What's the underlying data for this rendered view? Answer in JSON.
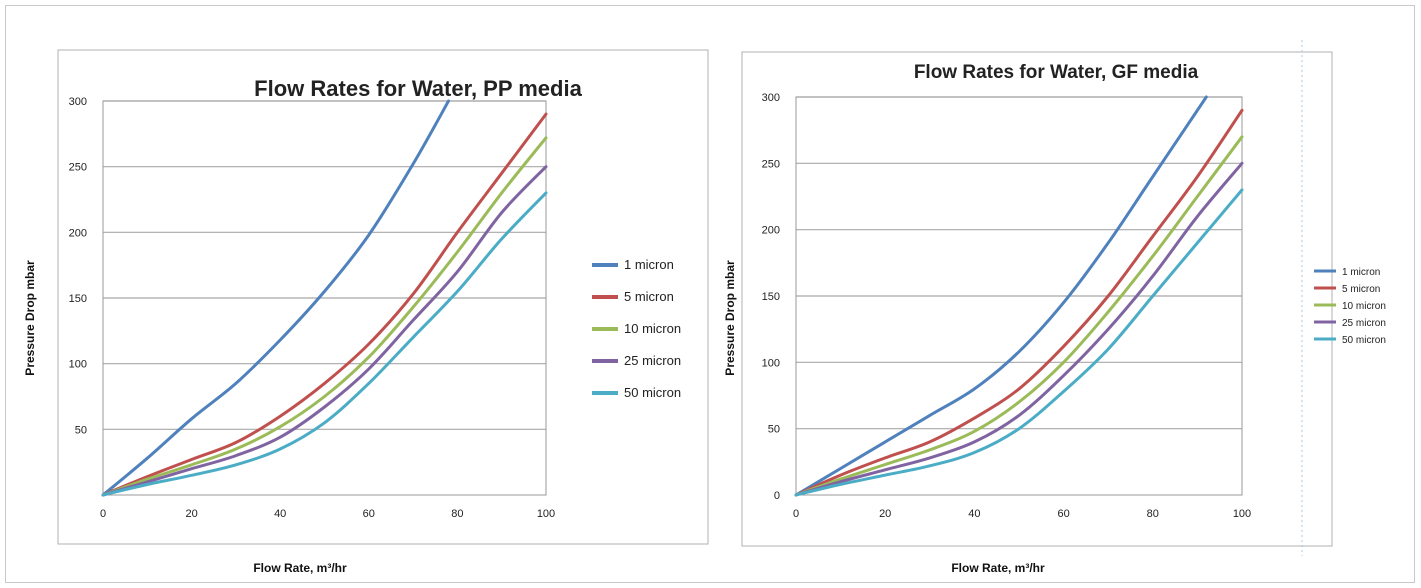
{
  "chart_data": [
    {
      "type": "line",
      "title": "Flow Rates for Water, PP media",
      "xlabel": "Flow Rate, m³/hr",
      "ylabel": "Pressure Drop mbar",
      "xlim": [
        0,
        100
      ],
      "ylim": [
        0,
        300
      ],
      "x_ticks": [
        "0",
        "20",
        "40",
        "60",
        "80",
        "100"
      ],
      "y_ticks": [
        "50",
        "100",
        "150",
        "200",
        "250",
        "300"
      ],
      "grid": true,
      "legend_position": "right",
      "series": [
        {
          "name": "1 micron",
          "color": "#4f81bd",
          "x": [
            0,
            10,
            20,
            30,
            40,
            50,
            60,
            70,
            78
          ],
          "y": [
            0,
            28,
            58,
            85,
            118,
            155,
            198,
            252,
            300
          ]
        },
        {
          "name": "5 micron",
          "color": "#c0504d",
          "x": [
            0,
            10,
            20,
            30,
            40,
            50,
            60,
            70,
            80,
            90,
            100
          ],
          "y": [
            0,
            14,
            27,
            40,
            60,
            85,
            115,
            153,
            200,
            245,
            290
          ]
        },
        {
          "name": "10 micron",
          "color": "#9bbb59",
          "x": [
            0,
            10,
            20,
            30,
            40,
            50,
            60,
            70,
            80,
            90,
            100
          ],
          "y": [
            0,
            12,
            23,
            35,
            52,
            75,
            105,
            143,
            185,
            230,
            272
          ]
        },
        {
          "name": "25 micron",
          "color": "#8064a2",
          "x": [
            0,
            10,
            20,
            30,
            40,
            50,
            60,
            70,
            80,
            90,
            100
          ],
          "y": [
            0,
            10,
            20,
            30,
            44,
            67,
            96,
            133,
            170,
            215,
            250
          ]
        },
        {
          "name": "50 micron",
          "color": "#4bacc6",
          "x": [
            0,
            10,
            20,
            30,
            40,
            50,
            60,
            70,
            80,
            90,
            100
          ],
          "y": [
            0,
            8,
            15,
            23,
            35,
            55,
            85,
            120,
            155,
            195,
            230
          ]
        }
      ]
    },
    {
      "type": "line",
      "title": "Flow Rates for Water, GF media",
      "xlabel": "Flow Rate, m³/hr",
      "ylabel": "Pressure Drop mbar",
      "xlim": [
        0,
        100
      ],
      "ylim": [
        0,
        300
      ],
      "x_ticks": [
        "0",
        "20",
        "40",
        "60",
        "80",
        "100"
      ],
      "y_ticks": [
        "0",
        "50",
        "100",
        "150",
        "200",
        "250",
        "300"
      ],
      "grid": true,
      "legend_position": "right",
      "series": [
        {
          "name": "1 micron",
          "color": "#4f81bd",
          "x": [
            0,
            10,
            20,
            30,
            40,
            50,
            60,
            70,
            80,
            92
          ],
          "y": [
            0,
            20,
            40,
            60,
            80,
            108,
            145,
            190,
            240,
            300
          ]
        },
        {
          "name": "5 micron",
          "color": "#c0504d",
          "x": [
            0,
            10,
            20,
            30,
            40,
            50,
            60,
            70,
            80,
            90,
            100
          ],
          "y": [
            0,
            15,
            28,
            40,
            58,
            80,
            112,
            150,
            195,
            240,
            290
          ]
        },
        {
          "name": "10 micron",
          "color": "#9bbb59",
          "x": [
            0,
            10,
            20,
            30,
            40,
            50,
            60,
            70,
            80,
            90,
            100
          ],
          "y": [
            0,
            12,
            23,
            34,
            48,
            70,
            100,
            138,
            180,
            225,
            270
          ]
        },
        {
          "name": "25 micron",
          "color": "#8064a2",
          "x": [
            0,
            10,
            20,
            30,
            40,
            50,
            60,
            70,
            80,
            90,
            100
          ],
          "y": [
            0,
            10,
            19,
            28,
            40,
            60,
            90,
            125,
            165,
            210,
            250
          ]
        },
        {
          "name": "50 micron",
          "color": "#4bacc6",
          "x": [
            0,
            10,
            20,
            30,
            40,
            50,
            60,
            70,
            80,
            90,
            100
          ],
          "y": [
            0,
            8,
            15,
            22,
            32,
            50,
            78,
            110,
            150,
            190,
            230
          ]
        }
      ]
    }
  ]
}
